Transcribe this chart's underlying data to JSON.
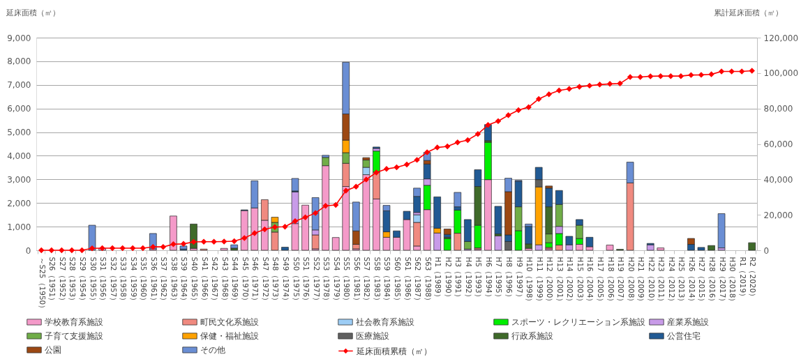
{
  "chart_data": {
    "type": "bar",
    "stacked": true,
    "ylabel": "延床面積（㎡）",
    "y2label": "累計延床面積（㎡）",
    "categories": [
      "～S25（1950）",
      "S26（1951）",
      "S27（1952）",
      "S28（1953）",
      "S29（1954）",
      "S30（1955）",
      "S31（1956）",
      "S32（1957）",
      "S33（1958）",
      "S34（1959）",
      "S35（1960）",
      "S36（1961）",
      "S37（1962）",
      "S38（1963）",
      "S39（1964）",
      "S40（1965）",
      "S41（1966）",
      "S42（1967）",
      "S43（1968）",
      "S44（1969）",
      "S45（1970）",
      "S46（1971）",
      "S47（1972）",
      "S48（1973）",
      "S49（1974）",
      "S50（1975）",
      "S51（1976）",
      "S52（1977）",
      "S53（1978）",
      "S54（1979）",
      "S55（1980）",
      "S56（1981）",
      "S57（1982）",
      "S58（1983）",
      "S59（1984）",
      "S60（1985）",
      "S61（1986）",
      "S62（1987）",
      "S63（1988）",
      "H1（1989）",
      "H2（1990）",
      "H3（1991）",
      "H4（1992）",
      "H5（1993）",
      "H6（1994）",
      "H7（1995）",
      "H8（1996）",
      "H9（1997）",
      "H10（1998）",
      "H11（1999）",
      "H12（2000）",
      "H13（2001）",
      "H14（2002）",
      "H15（2003）",
      "H16（2004）",
      "H17（2005）",
      "H18（2006）",
      "H19（2007）",
      "H20（2008）",
      "H21（2009）",
      "H22（2010）",
      "H23（2011）",
      "H24（2012）",
      "H25（2013）",
      "H26（2014）",
      "H27（2015）",
      "H28（2016）",
      "H29（2017）",
      "H30（2018）",
      "R1（2019）",
      "R2（2020）"
    ],
    "ylim": [
      0,
      9000
    ],
    "yticks": [
      0,
      {
        "value": 1000,
        "label": "1,000"
      },
      {
        "value": 2000,
        "label": "2,000"
      },
      {
        "value": 3000,
        "label": "3,000"
      },
      {
        "value": 4000,
        "label": "4,000"
      },
      {
        "value": 5000,
        "label": "5,000"
      },
      {
        "value": 6000,
        "label": "6,000"
      },
      {
        "value": 7000,
        "label": "7,000"
      },
      {
        "value": 8000,
        "label": "8,000"
      },
      {
        "value": 9000,
        "label": "9,000"
      }
    ],
    "y2lim": [
      0,
      120000
    ],
    "y2ticks": [
      0,
      {
        "value": 20000,
        "label": "20,000"
      },
      {
        "value": 40000,
        "label": "40,000"
      },
      {
        "value": 60000,
        "label": "60,000"
      },
      {
        "value": 80000,
        "label": "80,000"
      },
      {
        "value": 100000,
        "label": "100,000"
      },
      {
        "value": 120000,
        "label": "120,000"
      }
    ],
    "grid": "y",
    "legend": "bottom",
    "series": [
      {
        "name": "学校教育系施設",
        "color": "#f49ac9",
        "values": [
          null,
          null,
          null,
          null,
          null,
          null,
          80,
          null,
          null,
          null,
          null,
          60,
          null,
          1450,
          null,
          80,
          null,
          null,
          80,
          null,
          1680,
          1790,
          1270,
          null,
          null,
          1130,
          1910,
          60,
          3580,
          540,
          2700,
          60,
          3200,
          2170,
          550,
          550,
          1300,
          180,
          1720,
          null,
          null,
          null,
          null,
          50,
          2990,
          null,
          null,
          null,
          80,
          null,
          60,
          null,
          null,
          250,
          150,
          null,
          220,
          null,
          null,
          null,
          null,
          100,
          null,
          null,
          null,
          null,
          null,
          null,
          null,
          null,
          null
        ]
      },
      {
        "name": "町民文化系施設",
        "color": "#f08a80",
        "values": [
          null,
          null,
          null,
          null,
          null,
          null,
          null,
          null,
          null,
          null,
          null,
          null,
          null,
          null,
          null,
          null,
          50,
          null,
          null,
          null,
          null,
          null,
          870,
          770,
          null,
          null,
          null,
          590,
          null,
          null,
          980,
          190,
          null,
          1140,
          null,
          null,
          null,
          1000,
          null,
          null,
          null,
          720,
          null,
          50,
          null,
          null,
          null,
          null,
          null,
          null,
          60,
          220,
          null,
          null,
          null,
          null,
          null,
          null,
          2850,
          null,
          null,
          null,
          null,
          null,
          null,
          null,
          null,
          null,
          null,
          null,
          null
        ]
      },
      {
        "name": "社会教育系施設",
        "color": "#9dcdf5",
        "values": [
          null,
          null,
          null,
          null,
          null,
          null,
          null,
          null,
          null,
          null,
          null,
          null,
          null,
          null,
          null,
          null,
          null,
          null,
          null,
          null,
          null,
          null,
          null,
          null,
          null,
          null,
          null,
          null,
          null,
          null,
          null,
          null,
          310,
          null,
          null,
          null,
          null,
          320,
          null,
          null,
          null,
          null,
          null,
          null,
          null,
          null,
          null,
          null,
          null,
          null,
          null,
          null,
          null,
          null,
          null,
          null,
          null,
          null,
          null,
          null,
          null,
          null,
          null,
          null,
          null,
          null,
          null,
          null,
          null,
          null,
          null
        ]
      },
      {
        "name": "スポーツ・レクリエーション系施設",
        "color": "#00ee00",
        "values": [
          null,
          null,
          null,
          null,
          null,
          null,
          null,
          null,
          null,
          null,
          null,
          null,
          null,
          null,
          null,
          null,
          null,
          null,
          null,
          null,
          null,
          null,
          null,
          null,
          null,
          null,
          null,
          null,
          null,
          null,
          null,
          null,
          null,
          890,
          null,
          null,
          null,
          null,
          1030,
          null,
          490,
          980,
          null,
          960,
          1580,
          null,
          null,
          830,
          null,
          null,
          200,
          490,
          null,
          250,
          null,
          null,
          null,
          null,
          null,
          null,
          null,
          null,
          null,
          null,
          null,
          null,
          null,
          null,
          null,
          null,
          null
        ]
      },
      {
        "name": "産業系施設",
        "color": "#c89be8",
        "values": [
          null,
          null,
          null,
          null,
          null,
          null,
          null,
          null,
          null,
          null,
          null,
          null,
          null,
          null,
          null,
          null,
          null,
          null,
          null,
          null,
          null,
          null,
          null,
          null,
          null,
          1340,
          null,
          210,
          null,
          null,
          null,
          null,
          null,
          110,
          null,
          null,
          null,
          100,
          270,
          730,
          null,
          null,
          50,
          null,
          null,
          610,
          null,
          null,
          null,
          230,
          null,
          300,
          230,
          null,
          null,
          null,
          null,
          null,
          null,
          null,
          230,
          null,
          null,
          null,
          null,
          null,
          null,
          100,
          null,
          null,
          null
        ]
      },
      {
        "name": "子育て支援施設",
        "color": "#70ad47",
        "values": [
          null,
          null,
          null,
          null,
          null,
          null,
          null,
          null,
          null,
          null,
          null,
          null,
          null,
          null,
          null,
          null,
          null,
          null,
          null,
          null,
          null,
          null,
          null,
          410,
          null,
          null,
          null,
          null,
          350,
          null,
          450,
          null,
          310,
          null,
          null,
          null,
          null,
          null,
          null,
          null,
          null,
          null,
          320,
          null,
          null,
          null,
          null,
          1010,
          null,
          null,
          370,
          930,
          null,
          560,
          null,
          null,
          null,
          null,
          null,
          null,
          null,
          null,
          null,
          null,
          null,
          null,
          null,
          null,
          null,
          null,
          null
        ]
      },
      {
        "name": "保健・福祉施設",
        "color": "#ffa200",
        "values": [
          null,
          null,
          null,
          null,
          null,
          null,
          null,
          null,
          null,
          null,
          null,
          null,
          null,
          null,
          null,
          null,
          null,
          null,
          null,
          null,
          null,
          null,
          null,
          220,
          null,
          null,
          null,
          null,
          null,
          null,
          530,
          null,
          null,
          null,
          230,
          null,
          null,
          null,
          null,
          200,
          null,
          null,
          null,
          null,
          null,
          null,
          null,
          null,
          null,
          2450,
          null,
          null,
          null,
          null,
          null,
          null,
          null,
          null,
          null,
          null,
          null,
          null,
          null,
          null,
          null,
          null,
          null,
          null,
          null,
          null,
          null
        ]
      },
      {
        "name": "医療施設",
        "color": "#606060",
        "values": [
          null,
          null,
          null,
          null,
          null,
          null,
          null,
          null,
          null,
          null,
          null,
          null,
          null,
          null,
          null,
          null,
          null,
          null,
          null,
          null,
          null,
          null,
          null,
          null,
          null,
          null,
          null,
          null,
          null,
          null,
          null,
          null,
          null,
          null,
          null,
          null,
          null,
          null,
          null,
          null,
          null,
          null,
          null,
          null,
          null,
          null,
          370,
          null,
          null,
          310,
          null,
          null,
          null,
          null,
          null,
          null,
          null,
          null,
          null,
          null,
          null,
          null,
          null,
          null,
          null,
          null,
          null,
          null,
          null,
          null,
          null
        ]
      },
      {
        "name": "行政系施設",
        "color": "#3f6a2a",
        "values": [
          null,
          null,
          null,
          null,
          null,
          null,
          null,
          null,
          null,
          null,
          null,
          null,
          null,
          null,
          null,
          1030,
          null,
          null,
          null,
          90,
          null,
          null,
          null,
          null,
          null,
          null,
          null,
          null,
          null,
          null,
          null,
          null,
          null,
          null,
          null,
          null,
          null,
          null,
          null,
          null,
          60,
          null,
          null,
          1640,
          70,
          80,
          null,
          null,
          190,
          null,
          1150,
          null,
          null,
          null,
          null,
          null,
          null,
          40,
          null,
          null,
          null,
          null,
          null,
          null,
          null,
          null,
          200,
          null,
          null,
          null,
          320
        ]
      },
      {
        "name": "公営住宅",
        "color": "#215a94",
        "values": [
          null,
          null,
          null,
          null,
          null,
          null,
          null,
          null,
          null,
          null,
          null,
          null,
          null,
          null,
          50,
          null,
          null,
          null,
          null,
          null,
          30,
          null,
          null,
          null,
          130,
          40,
          null,
          null,
          null,
          null,
          null,
          null,
          null,
          60,
          890,
          270,
          350,
          680,
          630,
          1330,
          120,
          140,
          930,
          710,
          680,
          1170,
          280,
          1080,
          740,
          520,
          790,
          590,
          360,
          240,
          400,
          null,
          null,
          null,
          null,
          null,
          60,
          null,
          null,
          null,
          250,
          120,
          null,
          null,
          null,
          null,
          null
        ]
      },
      {
        "name": "公園",
        "color": "#9c4813",
        "values": [
          null,
          null,
          null,
          null,
          null,
          null,
          null,
          null,
          null,
          null,
          null,
          null,
          null,
          null,
          null,
          null,
          null,
          null,
          null,
          null,
          null,
          null,
          null,
          null,
          null,
          null,
          null,
          null,
          null,
          null,
          1110,
          570,
          100,
          null,
          null,
          null,
          null,
          null,
          150,
          null,
          230,
          null,
          null,
          null,
          null,
          null,
          1830,
          null,
          null,
          null,
          90,
          null,
          null,
          null,
          null,
          null,
          null,
          null,
          null,
          null,
          null,
          null,
          null,
          null,
          250,
          null,
          null,
          null,
          null,
          null,
          null
        ]
      },
      {
        "name": "その他",
        "color": "#6a8ed4",
        "values": [
          null,
          null,
          null,
          null,
          null,
          1060,
          null,
          null,
          null,
          null,
          null,
          650,
          null,
          null,
          130,
          null,
          null,
          null,
          null,
          140,
          null,
          1150,
          null,
          null,
          null,
          530,
          null,
          1370,
          90,
          null,
          2190,
          1220,
          null,
          null,
          230,
          null,
          null,
          350,
          340,
          null,
          null,
          610,
          null,
          null,
          null,
          null,
          570,
          40,
          100,
          null,
          null,
          null,
          null,
          null,
          null,
          null,
          null,
          null,
          880,
          null,
          null,
          null,
          null,
          null,
          null,
          null,
          null,
          1450,
          null,
          null,
          null
        ]
      },
      {
        "name": "延床面積累積（㎡）",
        "type": "line",
        "axis": "y2",
        "marker": "diamond",
        "color": "#ff0000",
        "values": [
          0,
          0,
          0,
          0,
          0,
          1100,
          1200,
          1200,
          1200,
          1200,
          1200,
          1900,
          1900,
          3400,
          3600,
          4700,
          4800,
          4800,
          4900,
          5100,
          6900,
          9600,
          11800,
          13100,
          13300,
          16400,
          18600,
          21000,
          25100,
          25600,
          33600,
          35900,
          39900,
          43900,
          45900,
          46800,
          48400,
          51000,
          55300,
          58000,
          58600,
          60900,
          62200,
          65600,
          70700,
          72900,
          76200,
          79100,
          80800,
          85400,
          88000,
          90200,
          91100,
          92300,
          92900,
          93500,
          93900,
          94100,
          97800,
          97800,
          98200,
          98300,
          98300,
          98300,
          98900,
          99000,
          99300,
          100900,
          100900,
          100900,
          101300
        ]
      }
    ]
  }
}
